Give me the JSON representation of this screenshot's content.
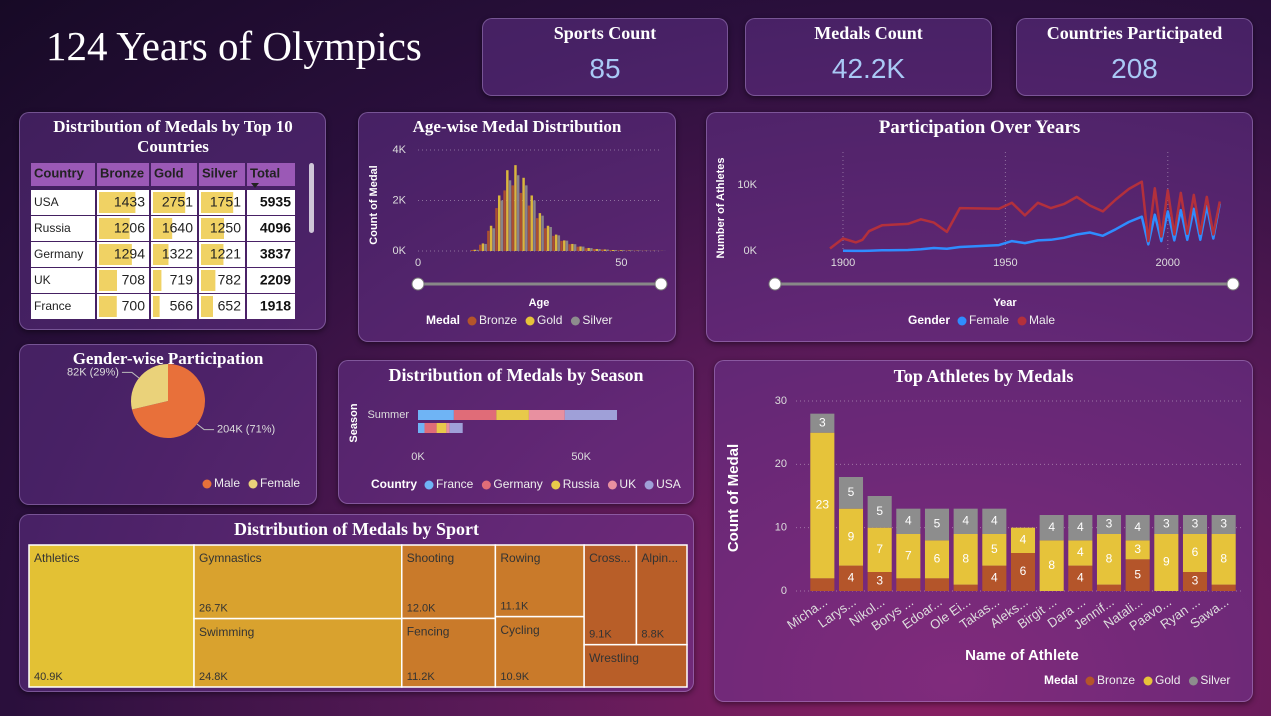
{
  "title": "124 Years of Olympics",
  "kpis": [
    {
      "label": "Sports Count",
      "value": "85"
    },
    {
      "label": "Medals Count",
      "value": "42.2K"
    },
    {
      "label": "Countries Participated",
      "value": "208"
    }
  ],
  "table": {
    "title": "Distribution of Medals by Top 10 Countries",
    "columns": [
      "Country",
      "Bronze",
      "Gold",
      "Silver",
      "Total"
    ],
    "rows": [
      [
        "USA",
        1433,
        2751,
        1751,
        5935
      ],
      [
        "Russia",
        1206,
        1640,
        1250,
        4096
      ],
      [
        "Germany",
        1294,
        1322,
        1221,
        3837
      ],
      [
        "UK",
        708,
        719,
        782,
        2209
      ],
      [
        "France",
        700,
        566,
        652,
        1918
      ]
    ]
  },
  "chart_data": [
    {
      "type": "bar",
      "title": "Age-wise Medal Distribution",
      "x_label": "Age",
      "y_label": "Count of Medal",
      "legend_title": "Medal",
      "grid": "y",
      "x": [
        14,
        16,
        18,
        20,
        22,
        24,
        26,
        28,
        30,
        32,
        34,
        36,
        38,
        40,
        42,
        44,
        46,
        48,
        50,
        52,
        54,
        56,
        58,
        60
      ],
      "series": [
        {
          "name": "Bronze",
          "color": "#b4552a",
          "values": [
            40,
            250,
            800,
            1700,
            2400,
            2600,
            2300,
            1800,
            1300,
            900,
            600,
            400,
            270,
            170,
            110,
            80,
            60,
            40,
            25,
            18,
            12,
            8,
            6,
            4
          ]
        },
        {
          "name": "Gold",
          "color": "#e6c33a",
          "values": [
            50,
            300,
            1000,
            2200,
            3200,
            3400,
            2900,
            2200,
            1500,
            1000,
            650,
            420,
            280,
            180,
            120,
            80,
            60,
            40,
            30,
            20,
            15,
            10,
            8,
            5
          ]
        },
        {
          "name": "Silver",
          "color": "#8d8d8d",
          "values": [
            45,
            280,
            900,
            2000,
            2800,
            3000,
            2600,
            2000,
            1400,
            950,
            620,
            410,
            270,
            175,
            115,
            78,
            58,
            38,
            28,
            19,
            14,
            9,
            7,
            4
          ]
        }
      ],
      "xlim": [
        0,
        60
      ],
      "xticks": [
        0,
        50
      ],
      "ylim": [
        0,
        4000
      ],
      "yticks": [
        {
          "value": 0,
          "label": "0K"
        },
        {
          "value": 2000,
          "label": "2K"
        },
        {
          "value": 4000,
          "label": "4K"
        }
      ]
    },
    {
      "type": "line",
      "title": "Participation Over Years",
      "x_label": "Year",
      "y_label": "Number of Athletes",
      "legend_title": "Gender",
      "grid": "x",
      "x": [
        1896,
        1900,
        1904,
        1906,
        1908,
        1912,
        1920,
        1924,
        1928,
        1932,
        1936,
        1948,
        1952,
        1956,
        1960,
        1964,
        1968,
        1972,
        1976,
        1980,
        1984,
        1988,
        1992,
        1994,
        1996,
        1998,
        2000,
        2002,
        2004,
        2006,
        2008,
        2010,
        2012,
        2014,
        2016
      ],
      "series": [
        {
          "name": "Female",
          "color": "#2f8cff",
          "values": [
            null,
            30,
            15,
            10,
            50,
            100,
            150,
            250,
            450,
            350,
            600,
            900,
            1500,
            1200,
            1600,
            1700,
            2000,
            2500,
            2800,
            2300,
            3300,
            4400,
            5200,
            1000,
            5500,
            1500,
            6000,
            1600,
            6200,
            1700,
            6400,
            1700,
            6800,
            1900,
            7200
          ]
        },
        {
          "name": "Male",
          "color": "#b3303c",
          "values": [
            380,
            1900,
            1300,
            1700,
            3000,
            3900,
            4100,
            4800,
            4300,
            2900,
            6500,
            6400,
            7300,
            5400,
            7300,
            6500,
            7100,
            8200,
            6900,
            6000,
            7800,
            9400,
            10500,
            1500,
            9500,
            2200,
            9200,
            2500,
            8800,
            2600,
            8500,
            2600,
            8200,
            2500,
            7500
          ]
        }
      ],
      "xlim": [
        1890,
        2021
      ],
      "xticks": [
        1900,
        1950,
        2000
      ],
      "ylim": [
        0,
        15000
      ],
      "yticks": [
        {
          "value": 0,
          "label": "0K"
        },
        {
          "value": 10000,
          "label": "10K"
        }
      ]
    },
    {
      "type": "pie",
      "title": "Gender-wise Participation",
      "categories": [
        "Male",
        "Female"
      ],
      "values": [
        204000,
        82000
      ],
      "value_labels": [
        "204K (71%)",
        "82K (29%)"
      ],
      "colors": [
        "#e8703a",
        "#ead27a"
      ]
    },
    {
      "type": "bar",
      "orientation": "horizontal",
      "title": "Distribution of Medals by Season",
      "y_label": "Season",
      "legend_title": "Country",
      "categories": [
        "Summer",
        null
      ],
      "series": [
        {
          "name": "France",
          "color": "#6fb4f5",
          "values": [
            11000,
            2000
          ]
        },
        {
          "name": "Germany",
          "color": "#e06c78",
          "values": [
            13000,
            3700
          ]
        },
        {
          "name": "Russia",
          "color": "#e8c94a",
          "values": [
            10000,
            3000
          ]
        },
        {
          "name": "UK",
          "color": "#e890a0",
          "values": [
            11000,
            1000
          ]
        },
        {
          "name": "USA",
          "color": "#9fa0d8",
          "values": [
            16000,
            4000
          ]
        }
      ],
      "xlim": [
        0,
        80000
      ],
      "xticks": [
        {
          "value": 0,
          "label": "0K"
        },
        {
          "value": 50000,
          "label": "50K"
        }
      ]
    },
    {
      "type": "treemap",
      "title": "Distribution of Medals by Sport",
      "categories": [
        "Athletics",
        "Gymnastics",
        "Swimming",
        "Shooting",
        "Fencing",
        "Rowing",
        "Cycling",
        "Cross...",
        "Alpin...",
        "Wrestling"
      ],
      "values": [
        40900,
        26700,
        24800,
        12000,
        11200,
        11100,
        10900,
        9100,
        8800,
        7600
      ],
      "value_labels": [
        "40.9K",
        "26.7K",
        "24.8K",
        "12.0K",
        "11.2K",
        "11.1K",
        "10.9K",
        "9.1K",
        "8.8K",
        null
      ],
      "colors": [
        "#e3c134",
        "#d9a22e",
        "#d9a22e",
        "#c97a2a",
        "#c97a2a",
        "#c97a2a",
        "#c97a2a",
        "#b85e28",
        "#b85e28",
        "#b85e28"
      ]
    },
    {
      "type": "bar",
      "stacked": true,
      "title": "Top Athletes by Medals",
      "x_label": "Name of Athlete",
      "y_label": "Count of Medal",
      "legend_title": "Medal",
      "grid": "y",
      "categories": [
        "Micha...",
        "Larys...",
        "Nikol...",
        "Borys ...",
        "Edoar...",
        "Ole Ei...",
        "Takas...",
        "Aleks...",
        "Birgit ...",
        "Dara ...",
        "Jennif...",
        "Natali...",
        "Paavo...",
        "Ryan ...",
        "Sawa..."
      ],
      "series": [
        {
          "name": "Bronze",
          "color": "#b4552a",
          "values": [
            2,
            4,
            3,
            2,
            2,
            1,
            4,
            6,
            0,
            4,
            1,
            5,
            0,
            3,
            1
          ]
        },
        {
          "name": "Gold",
          "color": "#e6c33a",
          "values": [
            23,
            9,
            7,
            7,
            6,
            8,
            5,
            4,
            8,
            4,
            8,
            3,
            9,
            6,
            8
          ]
        },
        {
          "name": "Silver",
          "color": "#8d8d8d",
          "values": [
            3,
            5,
            5,
            4,
            5,
            4,
            4,
            0,
            4,
            4,
            3,
            4,
            3,
            3,
            3
          ]
        }
      ],
      "ylim": [
        0,
        30
      ],
      "yticks": [
        0,
        10,
        20,
        30
      ]
    }
  ]
}
